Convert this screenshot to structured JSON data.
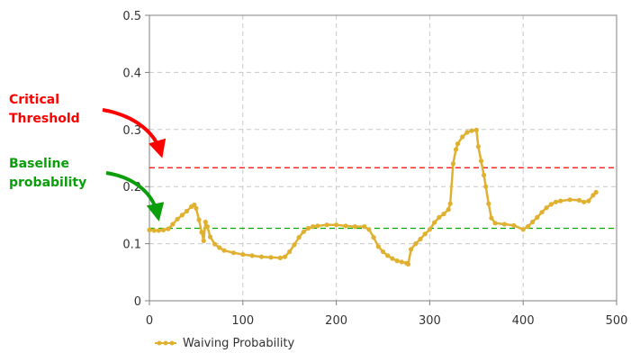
{
  "annotations": {
    "critical": {
      "line1": "Critical",
      "line2": "Threshold",
      "color": "#ff0000"
    },
    "baseline": {
      "line1": "Baseline",
      "line2": "probability",
      "color": "#0a9e0a"
    }
  },
  "chart_data": {
    "type": "line",
    "title": "",
    "xlabel": "",
    "ylabel": "",
    "xlim": [
      0,
      500
    ],
    "ylim": [
      0,
      0.5
    ],
    "xticks": [
      "0",
      "100",
      "200",
      "300",
      "400",
      "500"
    ],
    "yticks": [
      "0",
      "0.1",
      "0.2",
      "0.3",
      "0.4",
      "0.5"
    ],
    "grid": true,
    "legend_position": "bottom-left",
    "series": [
      {
        "name": "Waiving Probability",
        "color": "#e0b030",
        "x": [
          0,
          5,
          10,
          15,
          20,
          25,
          30,
          35,
          40,
          45,
          48,
          50,
          53,
          56,
          58,
          60,
          62,
          65,
          70,
          75,
          80,
          90,
          100,
          110,
          120,
          130,
          140,
          145,
          150,
          155,
          160,
          165,
          170,
          175,
          180,
          190,
          200,
          210,
          220,
          230,
          235,
          240,
          245,
          250,
          255,
          260,
          265,
          270,
          275,
          277,
          280,
          285,
          290,
          295,
          300,
          305,
          310,
          315,
          320,
          322,
          325,
          328,
          330,
          335,
          340,
          345,
          350,
          352,
          355,
          358,
          360,
          363,
          366,
          370,
          380,
          390,
          400,
          405,
          410,
          415,
          420,
          425,
          430,
          435,
          440,
          450,
          460,
          465,
          470,
          475,
          478
        ],
        "values": [
          0.124,
          0.123,
          0.123,
          0.124,
          0.126,
          0.134,
          0.143,
          0.15,
          0.157,
          0.165,
          0.168,
          0.162,
          0.142,
          0.12,
          0.105,
          0.138,
          0.13,
          0.112,
          0.099,
          0.093,
          0.088,
          0.084,
          0.081,
          0.079,
          0.077,
          0.076,
          0.075,
          0.077,
          0.086,
          0.098,
          0.111,
          0.121,
          0.127,
          0.13,
          0.131,
          0.133,
          0.133,
          0.131,
          0.13,
          0.13,
          0.125,
          0.111,
          0.095,
          0.086,
          0.079,
          0.074,
          0.07,
          0.068,
          0.066,
          0.064,
          0.09,
          0.1,
          0.108,
          0.117,
          0.125,
          0.137,
          0.146,
          0.152,
          0.16,
          0.17,
          0.24,
          0.265,
          0.275,
          0.287,
          0.295,
          0.298,
          0.299,
          0.27,
          0.245,
          0.22,
          0.2,
          0.17,
          0.145,
          0.136,
          0.134,
          0.132,
          0.125,
          0.13,
          0.138,
          0.146,
          0.155,
          0.163,
          0.169,
          0.173,
          0.175,
          0.177,
          0.176,
          0.173,
          0.175,
          0.185,
          0.19
        ]
      }
    ],
    "reference_lines": [
      {
        "label": "Critical Threshold",
        "y": 0.233,
        "color": "#ff0000",
        "dash": "dashed"
      },
      {
        "label": "Baseline probability",
        "y": 0.127,
        "color": "#00aa00",
        "dash": "dashed"
      }
    ]
  }
}
